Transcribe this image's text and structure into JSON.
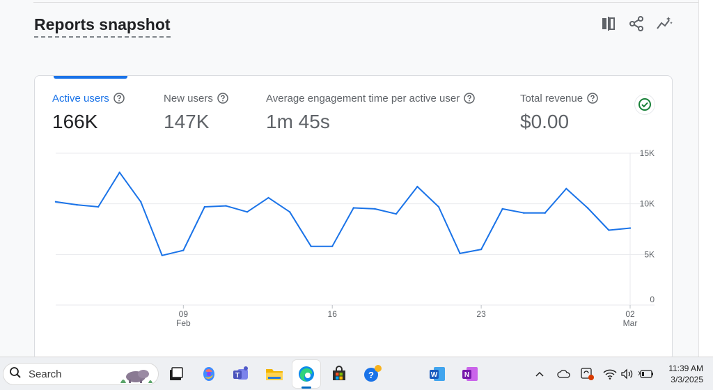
{
  "header": {
    "title": "Reports snapshot",
    "actions": [
      {
        "name": "compare-icon"
      },
      {
        "name": "share-icon"
      },
      {
        "name": "insights-icon"
      }
    ]
  },
  "metrics": [
    {
      "label": "Active users",
      "value": "166K",
      "active": true
    },
    {
      "label": "New users",
      "value": "147K",
      "active": false
    },
    {
      "label": "Average engagement time per active user",
      "value": "1m 45s",
      "active": false
    },
    {
      "label": "Total revenue",
      "value": "$0.00",
      "active": false
    }
  ],
  "chart_data": {
    "type": "line",
    "title": "",
    "series": [
      {
        "values": [
          10200,
          9900,
          9700,
          13100,
          10200,
          4900,
          5400,
          9700,
          9800,
          9200,
          10600,
          9200,
          5800,
          5800,
          9600,
          9500,
          9000,
          11700,
          9700,
          5100,
          5500,
          9500,
          9100,
          9100,
          11500,
          9600,
          7400,
          7600
        ]
      }
    ],
    "x_ticks": [
      {
        "label": "09",
        "sub": "Feb",
        "index": 6
      },
      {
        "label": "16",
        "sub": "",
        "index": 13
      },
      {
        "label": "23",
        "sub": "",
        "index": 20
      },
      {
        "label": "02",
        "sub": "Mar",
        "index": 27
      }
    ],
    "y_ticks": [
      "15K",
      "10K",
      "5K",
      "0"
    ],
    "y_tick_values": [
      15000,
      10000,
      5000,
      0
    ],
    "ylim": [
      0,
      15000
    ],
    "grid": true,
    "color": "#1a73e8"
  },
  "taskbar": {
    "search_label": "Search",
    "time": "11:39 AM",
    "date": "3/3/2025"
  }
}
